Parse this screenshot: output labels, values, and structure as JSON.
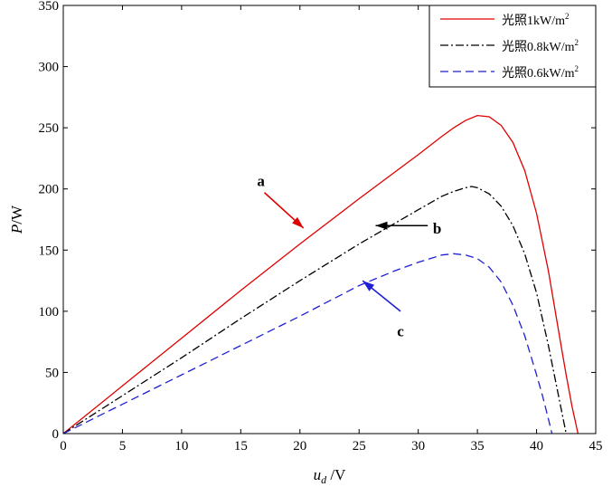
{
  "chart_data": {
    "type": "line",
    "xlabel": {
      "main": "u",
      "sub": "d",
      "unit": " /V"
    },
    "ylabel": {
      "main": "P",
      "unit": "/W"
    },
    "xlim": [
      0,
      45
    ],
    "ylim": [
      0,
      350
    ],
    "xticks": [
      "0",
      "5",
      "10",
      "15",
      "20",
      "25",
      "30",
      "35",
      "40",
      "45"
    ],
    "yticks": [
      "0",
      "50",
      "100",
      "150",
      "200",
      "250",
      "300",
      "350"
    ],
    "grid": false,
    "legend_position": "top-right",
    "series": [
      {
        "name": "光照1kW/m",
        "name_sup": "2",
        "color": "#e00000",
        "dash": "solid",
        "x": [
          0,
          5,
          10,
          15,
          20,
          25,
          30,
          32,
          33,
          34,
          35,
          36,
          37,
          38,
          39,
          40,
          41,
          42,
          42.5,
          43,
          43.5
        ],
        "y": [
          0,
          39,
          78,
          117,
          155,
          192,
          228,
          243,
          250,
          256,
          260,
          259,
          252,
          238,
          215,
          180,
          133,
          76,
          48,
          22,
          0
        ]
      },
      {
        "name": "光照0.8kW/m",
        "name_sup": "2",
        "color": "#000000",
        "dash": "dashdot",
        "x": [
          0,
          5,
          10,
          15,
          20,
          25,
          30,
          32,
          33,
          34,
          34.5,
          35,
          36,
          37,
          38,
          39,
          40,
          41,
          41.5,
          42,
          42.5
        ],
        "y": [
          0,
          31,
          62,
          94,
          125,
          155,
          183,
          194,
          198,
          201,
          202,
          201,
          196,
          186,
          170,
          147,
          115,
          72,
          48,
          24,
          0
        ]
      },
      {
        "name": "光照0.6kW/m",
        "name_sup": "2",
        "color": "#1f1fd6",
        "dash": "dashed",
        "x": [
          0,
          5,
          10,
          15,
          20,
          25,
          28,
          30,
          31,
          32,
          33,
          34,
          35,
          36,
          37,
          38,
          39,
          40,
          40.5,
          41,
          41.3
        ],
        "y": [
          0,
          24,
          48,
          72,
          96,
          121,
          133,
          140,
          143,
          146,
          147,
          146,
          143,
          136,
          124,
          105,
          80,
          48,
          31,
          12,
          0
        ]
      }
    ],
    "annotations": [
      {
        "label": "a",
        "color": "#e00000",
        "tail": [
          17.0,
          197
        ],
        "head": [
          20.3,
          168
        ],
        "text_at": [
          16.7,
          207
        ]
      },
      {
        "label": "b",
        "color": "#000000",
        "tail": [
          30.8,
          170
        ],
        "head": [
          26.4,
          170
        ],
        "text_at": [
          31.6,
          168
        ]
      },
      {
        "label": "c",
        "color": "#1f1fd6",
        "tail": [
          28.5,
          100
        ],
        "head": [
          25.3,
          125
        ],
        "text_at": [
          28.5,
          84
        ]
      }
    ]
  }
}
